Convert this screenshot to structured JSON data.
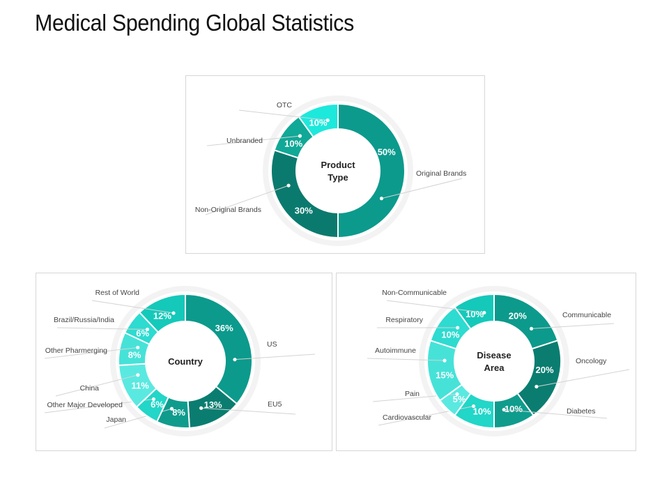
{
  "page": {
    "title": "Medical Spending Global Statistics"
  },
  "chart_data": [
    {
      "type": "pie",
      "title": "Product Type",
      "center_label": [
        "Product",
        "Type"
      ],
      "series": [
        {
          "name": "Original Brands",
          "value": 50,
          "label": "50%",
          "color": "#0c9a8c"
        },
        {
          "name": "Non-Original Brands",
          "value": 30,
          "label": "30%",
          "color": "#0b7a6e"
        },
        {
          "name": "Unbranded",
          "value": 10,
          "label": "10%",
          "color": "#10a896"
        },
        {
          "name": "OTC",
          "value": 10,
          "label": "10%",
          "color": "#1de8dc"
        }
      ]
    },
    {
      "type": "pie",
      "title": "Country",
      "center_label": [
        "Country"
      ],
      "series": [
        {
          "name": "US",
          "value": 36,
          "label": "36%",
          "color": "#0c9a8c"
        },
        {
          "name": "EU5",
          "value": 13,
          "label": "13%",
          "color": "#0a7d70"
        },
        {
          "name": "Japan",
          "value": 8,
          "label": "8%",
          "color": "#0f9c8d"
        },
        {
          "name": "Other Major Developed",
          "value": 6,
          "label": "6%",
          "color": "#22d6c8"
        },
        {
          "name": "China",
          "value": 11,
          "label": "11%",
          "color": "#5ae9e0"
        },
        {
          "name": "Other Pharmerging",
          "value": 8,
          "label": "8%",
          "color": "#46e2d8"
        },
        {
          "name": "Brazil/Russia/India",
          "value": 6,
          "label": "6%",
          "color": "#2ddbd0"
        },
        {
          "name": "Rest of World",
          "value": 12,
          "label": "12%",
          "color": "#14c9ba"
        }
      ]
    },
    {
      "type": "pie",
      "title": "Disease Area",
      "center_label": [
        "Disease",
        "Area"
      ],
      "series": [
        {
          "name": "Communicable",
          "value": 20,
          "label": "20%",
          "color": "#0c9a8c"
        },
        {
          "name": "Oncology",
          "value": 20,
          "label": "20%",
          "color": "#0a7d70"
        },
        {
          "name": "Diabetes",
          "value": 10,
          "label": "10%",
          "color": "#0f9c8d"
        },
        {
          "name": "Cardiovascular",
          "value": 10,
          "label": "10%",
          "color": "#22d6c8"
        },
        {
          "name": "Pain",
          "value": 5,
          "label": "5%",
          "color": "#5ae9e0"
        },
        {
          "name": "Autoimmune",
          "value": 15,
          "label": "15%",
          "color": "#46e2d8"
        },
        {
          "name": "Respiratory",
          "value": 10,
          "label": "10%",
          "color": "#2ddbd0"
        },
        {
          "name": "Non-Communicable",
          "value": 10,
          "label": "10%",
          "color": "#14c9ba"
        }
      ]
    }
  ]
}
